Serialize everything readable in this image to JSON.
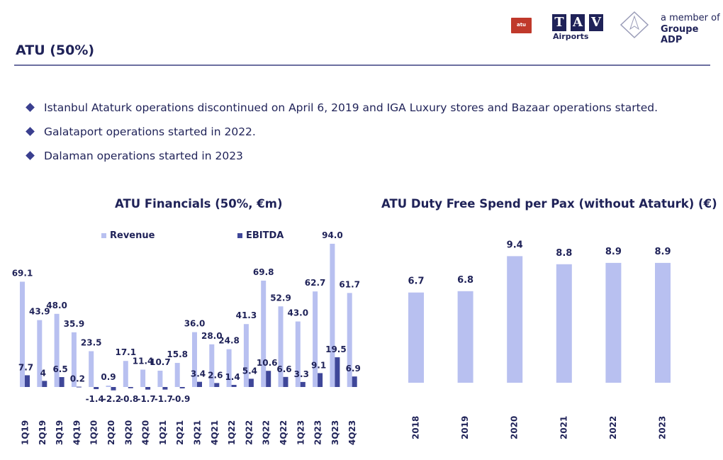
{
  "header": {
    "title": "ATU (50%)"
  },
  "logos": {
    "atu_text": "atu",
    "tav_letters": [
      "T",
      "A",
      "V"
    ],
    "tav_sub": "Airports",
    "member_line1": "a member of",
    "member_line2": "Groupe ADP"
  },
  "bullets": [
    "Istanbul Ataturk operations discontinued on April 6, 2019 and IGA Luxury stores and Bazaar operations started.",
    "Galataport operations started in 2022.",
    "Dalaman operations started in 2023"
  ],
  "colors": {
    "revenue": "#b8c0f0",
    "ebitda": "#3f4799",
    "bar2": "#b8c0f0",
    "text": "#1f2258"
  },
  "chart_data": [
    {
      "type": "bar",
      "title": "ATU Financials (50%, €m)",
      "categories": [
        "1Q19",
        "2Q19",
        "3Q19",
        "4Q19",
        "1Q20",
        "2Q20",
        "3Q20",
        "4Q20",
        "1Q21",
        "2Q21",
        "3Q21",
        "4Q21",
        "1Q22",
        "2Q22",
        "3Q22",
        "4Q22",
        "1Q23",
        "2Q23",
        "3Q23",
        "4Q23"
      ],
      "series": [
        {
          "name": "Revenue",
          "values": [
            69.1,
            43.9,
            48.0,
            35.9,
            23.5,
            0.9,
            17.1,
            11.4,
            10.7,
            15.8,
            36.0,
            28.0,
            24.8,
            41.3,
            69.8,
            52.9,
            43.0,
            62.7,
            94.0,
            61.7
          ],
          "labels": [
            "69.1",
            "43.9",
            "48.0",
            "35.9",
            "23.5",
            "0.9",
            "17.1",
            "11.4",
            "10.7",
            "15.8",
            "36.0",
            "28.0",
            "24.8",
            "41.3",
            "69.8",
            "52.9",
            "43.0",
            "62.7",
            "94.0",
            "61.7"
          ]
        },
        {
          "name": "EBITDA",
          "values": [
            7.7,
            4,
            6.5,
            0.2,
            -1.4,
            -2.2,
            -0.8,
            -1.7,
            -1.7,
            -0.9,
            3.4,
            2.6,
            1.4,
            5.4,
            10.6,
            6.6,
            3.3,
            9.1,
            19.5,
            6.9
          ],
          "labels": [
            "7.7",
            "4",
            "6.5",
            "0.2",
            "-1.4",
            "-2.2",
            "-0.8",
            "-1.7",
            "-1.7",
            "-0.9",
            "3.4",
            "2.6",
            "1.4",
            "5.4",
            "10.6",
            "6.6",
            "3.3",
            "9.1",
            "19.5",
            "6.9"
          ]
        }
      ],
      "legend": "top"
    },
    {
      "type": "bar",
      "title": "ATU Duty Free Spend per Pax (without Ataturk) (€)",
      "categories": [
        "2018",
        "2019",
        "2020",
        "2021",
        "2022",
        "2023"
      ],
      "values": [
        6.7,
        6.8,
        9.4,
        8.8,
        8.9,
        8.9
      ],
      "labels": [
        "6.7",
        "6.8",
        "9.4",
        "8.8",
        "8.9",
        "8.9"
      ]
    }
  ]
}
